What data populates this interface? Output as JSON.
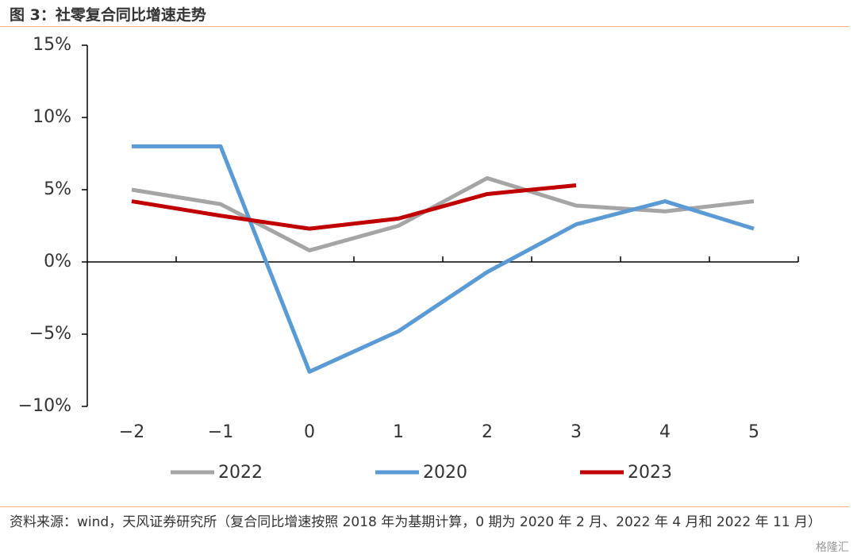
{
  "title": "图 3：社零复合同比增速走势",
  "source": "资料来源：wind，天风证券研究所（复合同比增速按照 2018 年为基期计算，0 期为 2020 年 2 月、2022 年 4 月和 2022 年 11 月）",
  "watermark": "格隆汇",
  "chart_data": {
    "type": "line",
    "categories": [
      "−2",
      "−1",
      "0",
      "1",
      "2",
      "3",
      "4",
      "5"
    ],
    "series": [
      {
        "name": "2022",
        "color": "#a5a5a5",
        "values": [
          5.0,
          4.0,
          0.8,
          2.5,
          5.8,
          3.9,
          3.5,
          4.2
        ]
      },
      {
        "name": "2020",
        "color": "#5b9bd5",
        "values": [
          8.0,
          8.0,
          -7.6,
          -4.8,
          -0.7,
          2.6,
          4.2,
          2.3
        ]
      },
      {
        "name": "2023",
        "color": "#c00000",
        "values": [
          4.2,
          3.2,
          2.3,
          3.0,
          4.7,
          5.3,
          null,
          null
        ]
      }
    ],
    "ylim": [
      -10,
      15
    ],
    "yticks": [
      {
        "value": -10,
        "label": "−10%"
      },
      {
        "value": -5,
        "label": "−5%"
      },
      {
        "value": 0,
        "label": "0%"
      },
      {
        "value": 5,
        "label": "5%"
      },
      {
        "value": 10,
        "label": "10%"
      },
      {
        "value": 15,
        "label": "15%"
      }
    ],
    "legend": "bottom"
  }
}
